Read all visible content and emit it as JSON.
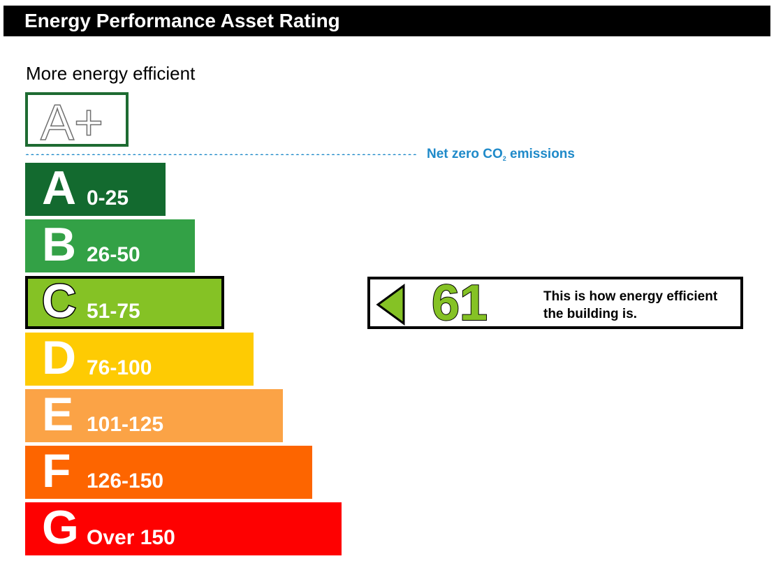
{
  "header": {
    "title": "Energy Performance Asset Rating"
  },
  "scale": {
    "top_caption": "More energy efficient",
    "aplus": {
      "label": "A+"
    },
    "net_zero": {
      "prefix": "Net zero CO",
      "subscript": "2",
      "suffix": "emissions",
      "color": "#1f8ac9"
    },
    "bands": [
      {
        "letter": "A",
        "range": "0-25",
        "color": "#136a2f"
      },
      {
        "letter": "B",
        "range": "26-50",
        "color": "#33a146"
      },
      {
        "letter": "C",
        "range": "51-75",
        "color": "#85c225"
      },
      {
        "letter": "D",
        "range": "76-100",
        "color": "#fecb03"
      },
      {
        "letter": "E",
        "range": "101-125",
        "color": "#fba346"
      },
      {
        "letter": "F",
        "range": "126-150",
        "color": "#fd6500"
      },
      {
        "letter": "G",
        "range": "Over 150",
        "color": "#fe0101"
      }
    ]
  },
  "rating": {
    "value": "61",
    "band": "C",
    "color": "#85c225",
    "description": "This is how energy efficient the building is."
  }
}
